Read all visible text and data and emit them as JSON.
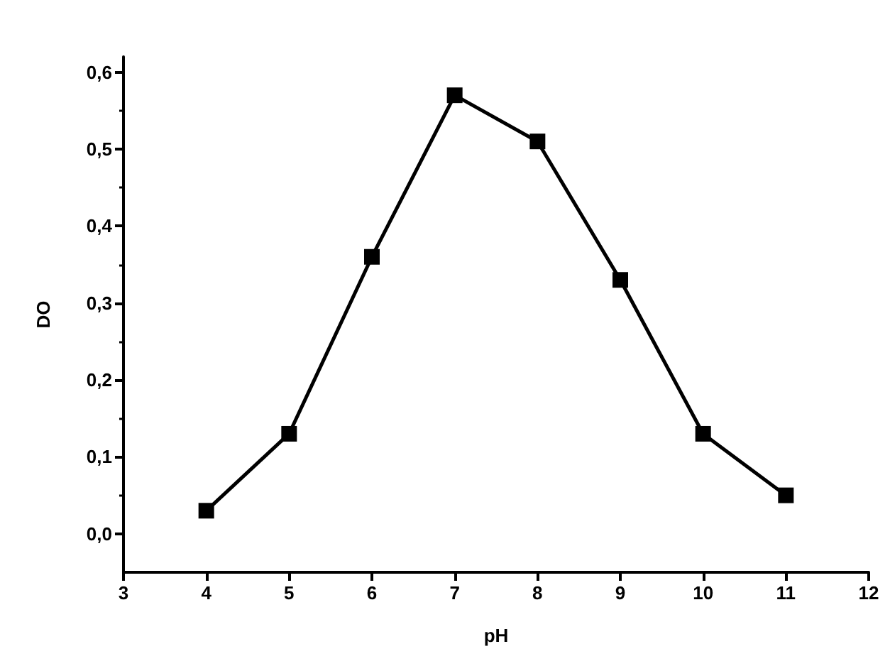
{
  "chart_data": {
    "type": "line",
    "xlabel": "pH",
    "ylabel": "DO",
    "x": [
      4,
      5,
      6,
      7,
      8,
      9,
      10,
      11
    ],
    "series": [
      {
        "color": "#000000",
        "values": [
          0.03,
          0.13,
          0.36,
          0.57,
          0.51,
          0.33,
          0.13,
          0.05
        ]
      }
    ],
    "xlim": [
      3,
      12
    ],
    "xticks": [
      3,
      4,
      5,
      6,
      7,
      8,
      9,
      10,
      11,
      12
    ],
    "ylim": [
      -0.05,
      0.62
    ],
    "yticks": [
      {
        "value": 0,
        "label": "0,0"
      },
      {
        "value": 0.1,
        "label": "0,1"
      },
      {
        "value": 0.2,
        "label": "0,2"
      },
      {
        "value": 0.3,
        "label": "0,3"
      },
      {
        "value": 0.4,
        "label": "0,4"
      },
      {
        "value": 0.5,
        "label": "0,5"
      },
      {
        "value": 0.6,
        "label": "0,6"
      }
    ],
    "marker": "square",
    "line_style": "solid",
    "grid": false
  }
}
